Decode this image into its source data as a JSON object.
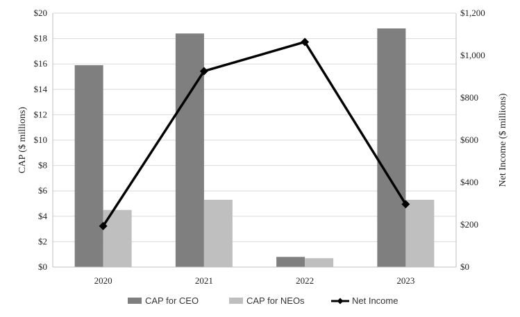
{
  "chart_data": {
    "type": "bar",
    "categories": [
      "2020",
      "2021",
      "2022",
      "2023"
    ],
    "series": [
      {
        "name": "CAP for CEO",
        "axis": "left",
        "kind": "bar",
        "color": "#7f7f7f",
        "values": [
          15.9,
          18.4,
          0.8,
          18.8
        ]
      },
      {
        "name": "CAP for NEOs",
        "axis": "left",
        "kind": "bar",
        "color": "#bfbfbf",
        "values": [
          4.5,
          5.3,
          0.7,
          5.3
        ]
      },
      {
        "name": "Net Income",
        "axis": "right",
        "kind": "line",
        "color": "#000000",
        "marker": "diamond",
        "values": [
          194,
          926,
          1064,
          297
        ]
      }
    ],
    "ylabel": "CAP ($ millions)",
    "y2label": "Net Income ($ millions)",
    "ylim": [
      0,
      20
    ],
    "y2lim": [
      0,
      1200
    ],
    "yticks": [
      "$0",
      "$2",
      "$4",
      "$6",
      "$8",
      "$10",
      "$12",
      "$14",
      "$16",
      "$18",
      "$20"
    ],
    "y2ticks": [
      "$0",
      "$200",
      "$400",
      "$600",
      "$800",
      "$1,000",
      "$1,200"
    ],
    "grid": true,
    "legend": "bottom"
  }
}
